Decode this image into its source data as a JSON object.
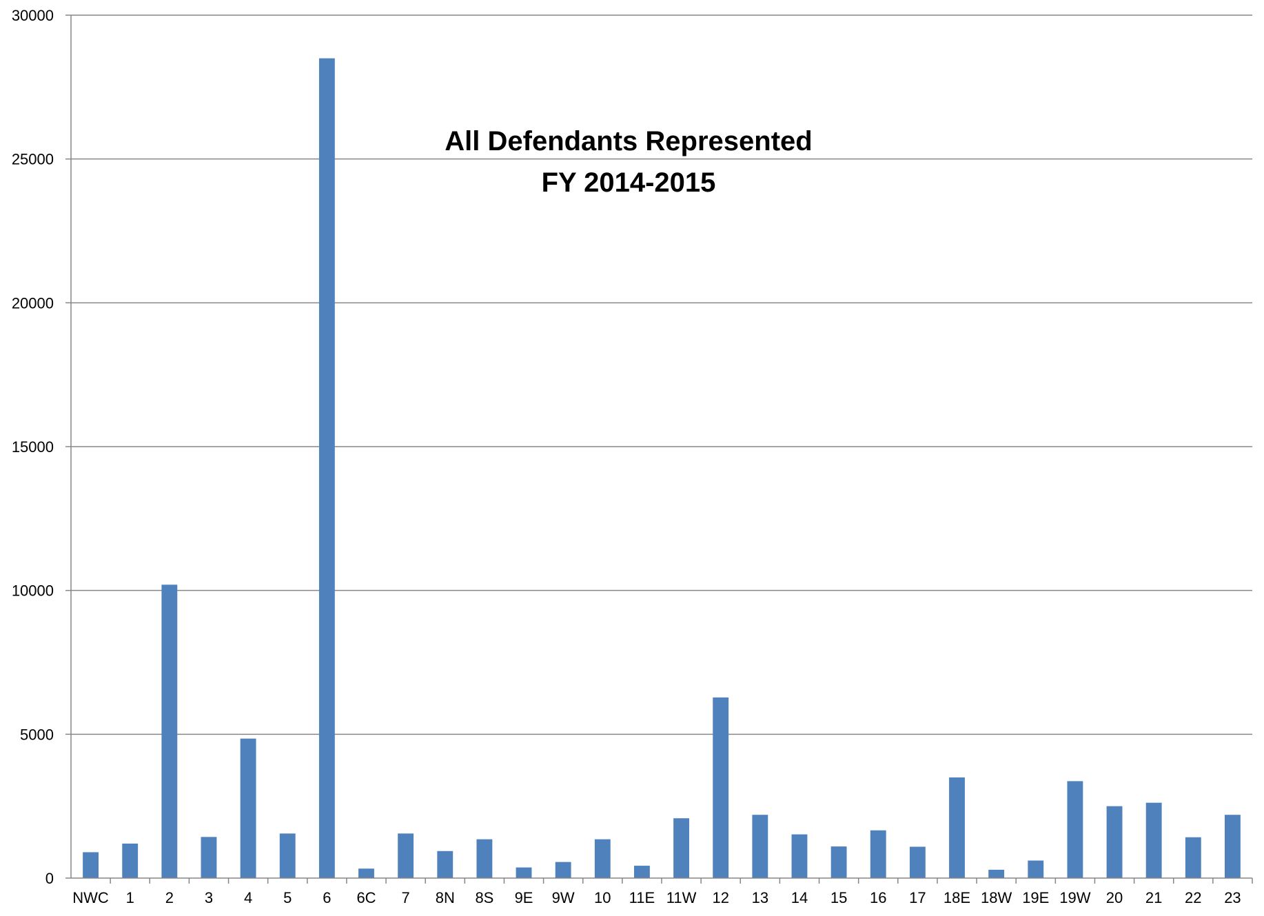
{
  "chart_data": {
    "type": "bar",
    "title_lines": [
      "All Defendants Represented",
      "FY 2014-2015"
    ],
    "xlabel": "",
    "ylabel": "",
    "ylim": [
      0,
      30000
    ],
    "yticks": [
      0,
      5000,
      10000,
      15000,
      20000,
      25000,
      30000
    ],
    "grid": true,
    "legend": "none",
    "categories": [
      "NWC",
      "1",
      "2",
      "3",
      "4",
      "5",
      "6",
      "6C",
      "7",
      "8N",
      "8S",
      "9E",
      "9W",
      "10",
      "11E",
      "11W",
      "12",
      "13",
      "14",
      "15",
      "16",
      "17",
      "18E",
      "18W",
      "19E",
      "19W",
      "20",
      "21",
      "22",
      "23"
    ],
    "values": [
      900,
      1200,
      10200,
      1430,
      4850,
      1550,
      28500,
      330,
      1550,
      940,
      1350,
      370,
      560,
      1350,
      430,
      2080,
      6280,
      2200,
      1520,
      1100,
      1660,
      1090,
      3500,
      290,
      610,
      3370,
      2500,
      2620,
      1420,
      2200
    ],
    "bar_color": "#4f81bd",
    "grid_color": "#868686",
    "axis_color": "#868686"
  }
}
